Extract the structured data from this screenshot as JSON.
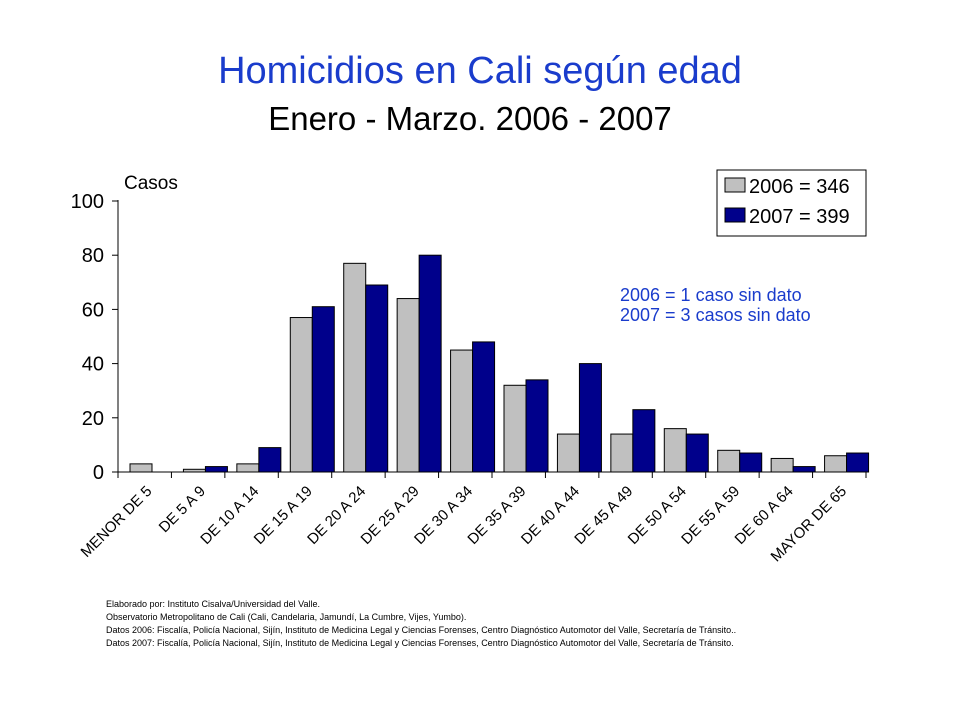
{
  "title": "Homicidios en Cali según edad",
  "subtitle": "Enero - Marzo.  2006 - 2007",
  "colors": {
    "s2006": "#c0c0c0",
    "s2007": "#00008b",
    "title": "#1a3ccc",
    "note": "#1a3ccc"
  },
  "chart_data": {
    "type": "bar",
    "ylabel": "Casos",
    "ylim": [
      0,
      100
    ],
    "yticks": [
      0,
      20,
      40,
      60,
      80,
      100
    ],
    "categories": [
      "MENOR DE 5",
      "DE 5 A 9",
      "DE 10 A 14",
      "DE  15 A 19",
      "DE  20 A 24",
      "DE  25 A 29",
      "DE  30 A 34",
      "DE  35 A 39",
      "DE  40 A 44",
      "DE  45 A 49",
      "DE  50 A 54",
      "DE  55 A 59",
      "DE  60 A 64",
      "MAYOR DE 65"
    ],
    "series": [
      {
        "name": "2006 = 346",
        "values": [
          3,
          1,
          3,
          57,
          77,
          64,
          45,
          32,
          14,
          14,
          16,
          8,
          5,
          6
        ]
      },
      {
        "name": "2007 = 399",
        "values": [
          0,
          2,
          9,
          61,
          69,
          80,
          48,
          34,
          40,
          23,
          14,
          7,
          2,
          7
        ]
      }
    ],
    "annotations": [
      "2006 = 1 caso sin dato",
      "2007 = 3 casos sin dato"
    ],
    "legend": "top-right",
    "grid": false
  },
  "footer": [
    "Elaborado por: Instituto Cisalva/Universidad del Valle.",
    "Observatorio Metropolitano de Cali (Cali, Candelaria, Jamundí, La Cumbre, Vijes, Yumbo).",
    "Datos 2006: Fiscalía, Policía Nacional, Sijín,  Instituto de Medicina Legal  y Ciencias Forenses, Centro Diagnóstico Automotor del Valle, Secretaría de Tránsito..",
    "Datos 2007: Fiscalía, Policía Nacional, Sijín, Instituto de Medicina Legal  y Ciencias Forenses, Centro Diagnóstico Automotor del Valle, Secretaría de Tránsito."
  ]
}
